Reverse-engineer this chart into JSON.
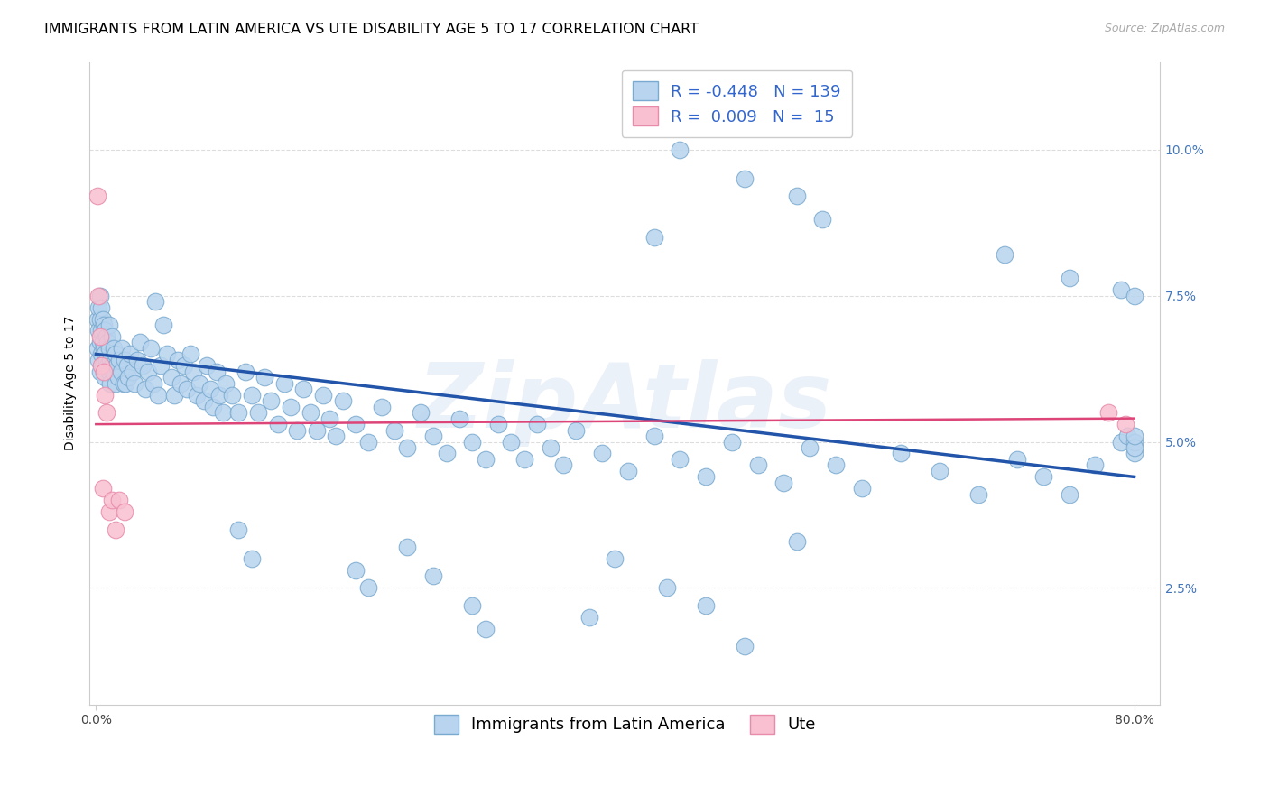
{
  "title": "IMMIGRANTS FROM LATIN AMERICA VS UTE DISABILITY AGE 5 TO 17 CORRELATION CHART",
  "source": "Source: ZipAtlas.com",
  "ylabel": "Disability Age 5 to 17",
  "xlim": [
    -0.005,
    0.82
  ],
  "ylim": [
    0.005,
    0.115
  ],
  "xtick_vals": [
    0.0,
    0.8
  ],
  "xtick_labels": [
    "0.0%",
    "80.0%"
  ],
  "yticks_right": [
    0.025,
    0.05,
    0.075,
    0.1
  ],
  "ytick_labels_right": [
    "2.5%",
    "5.0%",
    "7.5%",
    "10.0%"
  ],
  "blue_color": "#b8d4ee",
  "blue_edge": "#7aaad0",
  "pink_color": "#f8c0d0",
  "pink_edge": "#e88aaa",
  "trend_blue_color": "#2255aa",
  "trend_pink_color": "#dd4477",
  "watermark": "ZipAtlas",
  "R_blue": -0.448,
  "N_blue": 139,
  "R_pink": 0.009,
  "N_pink": 15,
  "trend_blue_x0": 0.0,
  "trend_blue_y0": 0.065,
  "trend_blue_x1": 0.8,
  "trend_blue_y1": 0.044,
  "trend_pink_x0": 0.0,
  "trend_pink_y0": 0.053,
  "trend_pink_x1": 0.8,
  "trend_pink_y1": 0.054,
  "blue_x": [
    0.001,
    0.001,
    0.002,
    0.002,
    0.002,
    0.003,
    0.003,
    0.003,
    0.003,
    0.004,
    0.004,
    0.004,
    0.005,
    0.005,
    0.005,
    0.006,
    0.006,
    0.006,
    0.007,
    0.007,
    0.007,
    0.008,
    0.008,
    0.009,
    0.009,
    0.01,
    0.01,
    0.01,
    0.011,
    0.011,
    0.012,
    0.012,
    0.013,
    0.014,
    0.015,
    0.015,
    0.016,
    0.017,
    0.018,
    0.019,
    0.02,
    0.021,
    0.022,
    0.023,
    0.024,
    0.025,
    0.026,
    0.028,
    0.03,
    0.032,
    0.034,
    0.036,
    0.038,
    0.04,
    0.042,
    0.044,
    0.046,
    0.048,
    0.05,
    0.052,
    0.055,
    0.058,
    0.06,
    0.063,
    0.065,
    0.068,
    0.07,
    0.073,
    0.075,
    0.078,
    0.08,
    0.083,
    0.085,
    0.088,
    0.09,
    0.093,
    0.095,
    0.098,
    0.1,
    0.105,
    0.11,
    0.115,
    0.12,
    0.125,
    0.13,
    0.135,
    0.14,
    0.145,
    0.15,
    0.155,
    0.16,
    0.165,
    0.17,
    0.175,
    0.18,
    0.185,
    0.19,
    0.2,
    0.21,
    0.22,
    0.23,
    0.24,
    0.25,
    0.26,
    0.27,
    0.28,
    0.29,
    0.3,
    0.31,
    0.32,
    0.33,
    0.34,
    0.35,
    0.36,
    0.37,
    0.39,
    0.41,
    0.43,
    0.45,
    0.47,
    0.49,
    0.51,
    0.53,
    0.55,
    0.57,
    0.59,
    0.62,
    0.65,
    0.68,
    0.71,
    0.73,
    0.75,
    0.77,
    0.79,
    0.795,
    0.8,
    0.8,
    0.8,
    0.8
  ],
  "blue_y": [
    0.066,
    0.071,
    0.064,
    0.069,
    0.073,
    0.062,
    0.067,
    0.071,
    0.075,
    0.065,
    0.069,
    0.073,
    0.063,
    0.067,
    0.071,
    0.062,
    0.066,
    0.07,
    0.061,
    0.065,
    0.069,
    0.064,
    0.068,
    0.063,
    0.067,
    0.062,
    0.066,
    0.07,
    0.06,
    0.064,
    0.063,
    0.068,
    0.062,
    0.066,
    0.06,
    0.065,
    0.063,
    0.061,
    0.064,
    0.062,
    0.066,
    0.06,
    0.064,
    0.06,
    0.063,
    0.061,
    0.065,
    0.062,
    0.06,
    0.064,
    0.067,
    0.063,
    0.059,
    0.062,
    0.066,
    0.06,
    0.074,
    0.058,
    0.063,
    0.07,
    0.065,
    0.061,
    0.058,
    0.064,
    0.06,
    0.063,
    0.059,
    0.065,
    0.062,
    0.058,
    0.06,
    0.057,
    0.063,
    0.059,
    0.056,
    0.062,
    0.058,
    0.055,
    0.06,
    0.058,
    0.055,
    0.062,
    0.058,
    0.055,
    0.061,
    0.057,
    0.053,
    0.06,
    0.056,
    0.052,
    0.059,
    0.055,
    0.052,
    0.058,
    0.054,
    0.051,
    0.057,
    0.053,
    0.05,
    0.056,
    0.052,
    0.049,
    0.055,
    0.051,
    0.048,
    0.054,
    0.05,
    0.047,
    0.053,
    0.05,
    0.047,
    0.053,
    0.049,
    0.046,
    0.052,
    0.048,
    0.045,
    0.051,
    0.047,
    0.044,
    0.05,
    0.046,
    0.043,
    0.049,
    0.046,
    0.042,
    0.048,
    0.045,
    0.041,
    0.047,
    0.044,
    0.041,
    0.046,
    0.05,
    0.051,
    0.048,
    0.05,
    0.049,
    0.051
  ],
  "blue_outlier_x": [
    0.43,
    0.45,
    0.5,
    0.54,
    0.56,
    0.7,
    0.75,
    0.79,
    0.8
  ],
  "blue_outlier_y": [
    0.085,
    0.1,
    0.095,
    0.092,
    0.088,
    0.082,
    0.078,
    0.076,
    0.075
  ],
  "blue_low_x": [
    0.11,
    0.12,
    0.2,
    0.21,
    0.24,
    0.26,
    0.29,
    0.3,
    0.38,
    0.4,
    0.44,
    0.47,
    0.5,
    0.54
  ],
  "blue_low_y": [
    0.035,
    0.03,
    0.028,
    0.025,
    0.032,
    0.027,
    0.022,
    0.018,
    0.02,
    0.03,
    0.025,
    0.022,
    0.015,
    0.033
  ],
  "pink_x": [
    0.001,
    0.002,
    0.003,
    0.004,
    0.005,
    0.006,
    0.007,
    0.008,
    0.01,
    0.012,
    0.015,
    0.018,
    0.022,
    0.78,
    0.793
  ],
  "pink_y": [
    0.092,
    0.075,
    0.068,
    0.063,
    0.042,
    0.062,
    0.058,
    0.055,
    0.038,
    0.04,
    0.035,
    0.04,
    0.038,
    0.055,
    0.053
  ],
  "title_fontsize": 11.5,
  "axis_label_fontsize": 10,
  "tick_fontsize": 10,
  "legend_fontsize": 13,
  "grid_color": "#dddddd",
  "axis_color": "#cccccc"
}
